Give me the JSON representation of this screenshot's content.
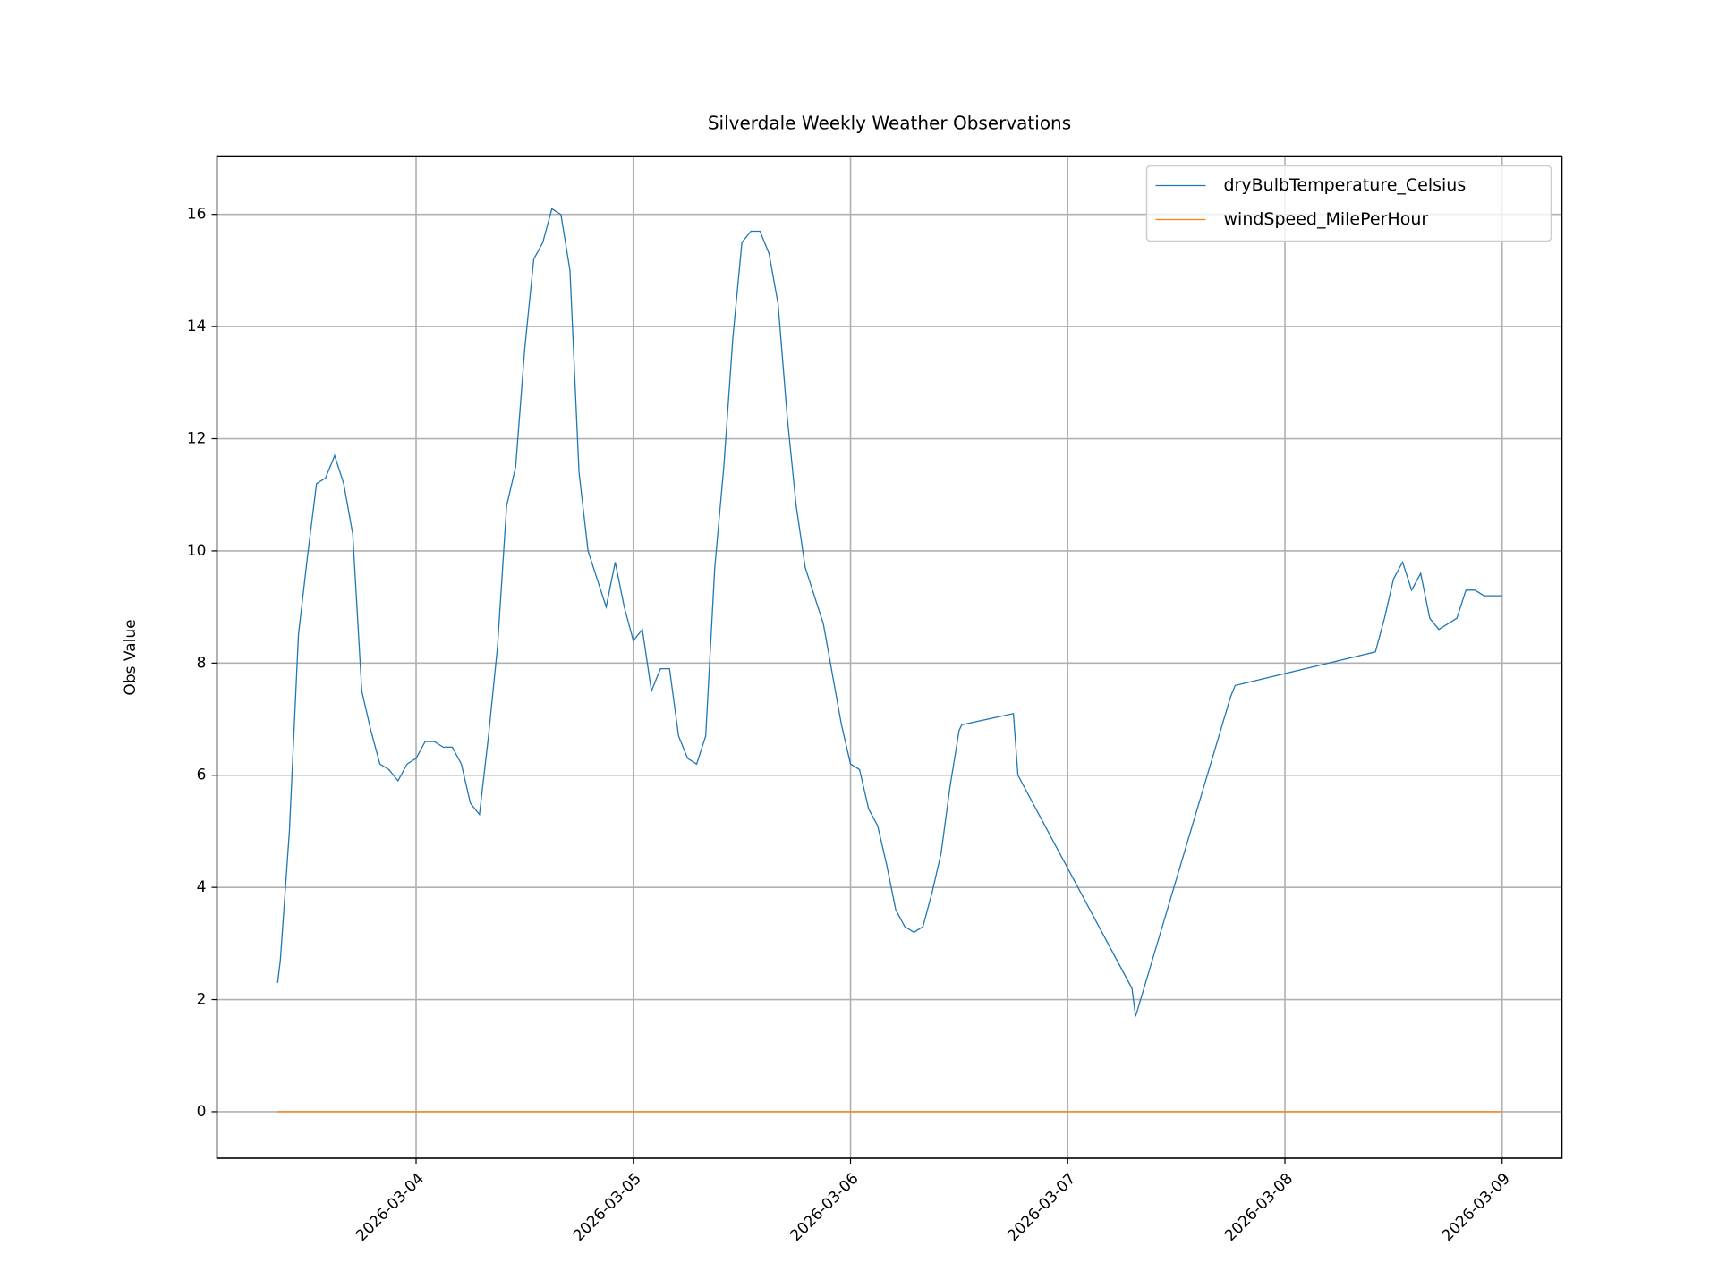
{
  "chart_data": {
    "type": "line",
    "title": "Silverdale Weekly Weather Observations",
    "y_label": "Obs Value",
    "x": [
      "2026-03-03T08:42",
      "2026-03-03T09:00",
      "2026-03-03T10:00",
      "2026-03-03T11:00",
      "2026-03-03T12:00",
      "2026-03-03T13:00",
      "2026-03-03T14:00",
      "2026-03-03T15:00",
      "2026-03-03T16:00",
      "2026-03-03T17:00",
      "2026-03-03T18:00",
      "2026-03-03T19:00",
      "2026-03-03T20:00",
      "2026-03-03T21:00",
      "2026-03-03T22:00",
      "2026-03-03T23:00",
      "2026-03-04T00:00",
      "2026-03-04T01:00",
      "2026-03-04T02:00",
      "2026-03-04T03:00",
      "2026-03-04T04:00",
      "2026-03-04T05:00",
      "2026-03-04T06:00",
      "2026-03-04T07:00",
      "2026-03-04T08:00",
      "2026-03-04T09:00",
      "2026-03-04T10:00",
      "2026-03-04T11:00",
      "2026-03-04T12:00",
      "2026-03-04T13:00",
      "2026-03-04T14:00",
      "2026-03-04T15:00",
      "2026-03-04T16:00",
      "2026-03-04T17:00",
      "2026-03-04T18:00",
      "2026-03-04T19:00",
      "2026-03-04T20:00",
      "2026-03-04T21:00",
      "2026-03-04T22:00",
      "2026-03-04T23:00",
      "2026-03-05T00:00",
      "2026-03-05T01:00",
      "2026-03-05T02:00",
      "2026-03-05T03:00",
      "2026-03-05T04:00",
      "2026-03-05T05:00",
      "2026-03-05T06:00",
      "2026-03-05T07:00",
      "2026-03-05T08:00",
      "2026-03-05T09:00",
      "2026-03-05T10:00",
      "2026-03-05T11:00",
      "2026-03-05T12:00",
      "2026-03-05T13:00",
      "2026-03-05T14:00",
      "2026-03-05T15:00",
      "2026-03-05T16:00",
      "2026-03-05T17:00",
      "2026-03-05T18:00",
      "2026-03-05T19:00",
      "2026-03-05T20:00",
      "2026-03-05T21:00",
      "2026-03-05T22:00",
      "2026-03-05T23:00",
      "2026-03-06T00:00",
      "2026-03-06T01:00",
      "2026-03-06T02:00",
      "2026-03-06T03:00",
      "2026-03-06T04:00",
      "2026-03-06T05:00",
      "2026-03-06T06:00",
      "2026-03-06T07:00",
      "2026-03-06T08:00",
      "2026-03-06T09:00",
      "2026-03-06T10:00",
      "2026-03-06T11:00",
      "2026-03-06T12:00",
      "2026-03-06T12:18",
      "2026-03-06T18:00",
      "2026-03-06T18:30",
      "2026-03-07T07:06",
      "2026-03-07T07:30",
      "2026-03-07T18:00",
      "2026-03-07T18:30",
      "2026-03-08T10:00",
      "2026-03-08T11:00",
      "2026-03-08T12:00",
      "2026-03-08T13:00",
      "2026-03-08T14:00",
      "2026-03-08T15:00",
      "2026-03-08T16:00",
      "2026-03-08T17:00",
      "2026-03-08T18:00",
      "2026-03-08T19:00",
      "2026-03-08T20:00",
      "2026-03-08T21:00",
      "2026-03-08T22:00",
      "2026-03-08T23:00",
      "2026-03-09T00:00"
    ],
    "series": [
      {
        "name": "dryBulbTemperature_Celsius",
        "color": "#1f77b4",
        "values": [
          2.3,
          2.7,
          5.0,
          8.5,
          9.9,
          11.2,
          11.3,
          11.7,
          11.2,
          10.3,
          7.5,
          6.8,
          6.2,
          6.1,
          5.9,
          6.2,
          6.3,
          6.6,
          6.6,
          6.5,
          6.5,
          6.2,
          5.5,
          5.3,
          6.7,
          8.3,
          10.8,
          11.5,
          13.6,
          15.2,
          15.5,
          16.1,
          16.0,
          15.0,
          11.4,
          10.0,
          9.5,
          9.0,
          9.8,
          9.0,
          8.4,
          8.6,
          7.5,
          7.9,
          7.9,
          6.7,
          6.3,
          6.2,
          6.7,
          9.7,
          11.5,
          13.8,
          15.5,
          15.7,
          15.7,
          15.3,
          14.4,
          12.4,
          10.8,
          9.7,
          9.2,
          8.7,
          7.8,
          6.9,
          6.2,
          6.1,
          5.4,
          5.1,
          4.4,
          3.6,
          3.3,
          3.2,
          3.3,
          3.9,
          4.6,
          5.8,
          6.8,
          6.9,
          7.1,
          6.0,
          2.2,
          1.7,
          7.4,
          7.6,
          8.2,
          8.8,
          9.5,
          9.8,
          9.3,
          9.6,
          8.8,
          8.6,
          8.7,
          8.8,
          9.3,
          9.3,
          9.2,
          9.2,
          9.2
        ]
      },
      {
        "name": "windSpeed_MilePerHour",
        "color": "#ff7f0e",
        "values": [
          0,
          0,
          0,
          0,
          0,
          0,
          0,
          0,
          0,
          0,
          0,
          0,
          0,
          0,
          0,
          0,
          0,
          0,
          0,
          0,
          0,
          0,
          0,
          0,
          0,
          0,
          0,
          0,
          0,
          0,
          0,
          0,
          0,
          0,
          0,
          0,
          0,
          0,
          0,
          0,
          0,
          0,
          0,
          0,
          0,
          0,
          0,
          0,
          0,
          0,
          0,
          0,
          0,
          0,
          0,
          0,
          0,
          0,
          0,
          0,
          0,
          0,
          0,
          0,
          0,
          0,
          0,
          0,
          0,
          0,
          0,
          0,
          0,
          0,
          0,
          0,
          0,
          0,
          0,
          0,
          0,
          0,
          0,
          0,
          0,
          0,
          0,
          0,
          0,
          0,
          0,
          0,
          0,
          0,
          0,
          0,
          0,
          0,
          0
        ]
      }
    ],
    "xlim": [
      "2026-03-03T02:00",
      "2026-03-09T06:36"
    ],
    "xticks": [
      "2026-03-04",
      "2026-03-05",
      "2026-03-06",
      "2026-03-07",
      "2026-03-08",
      "2026-03-09"
    ],
    "ylim": [
      -0.83,
      17.04
    ],
    "yticks": [
      0,
      2,
      4,
      6,
      8,
      10,
      12,
      14,
      16
    ],
    "grid": true,
    "legend": "upper right"
  }
}
